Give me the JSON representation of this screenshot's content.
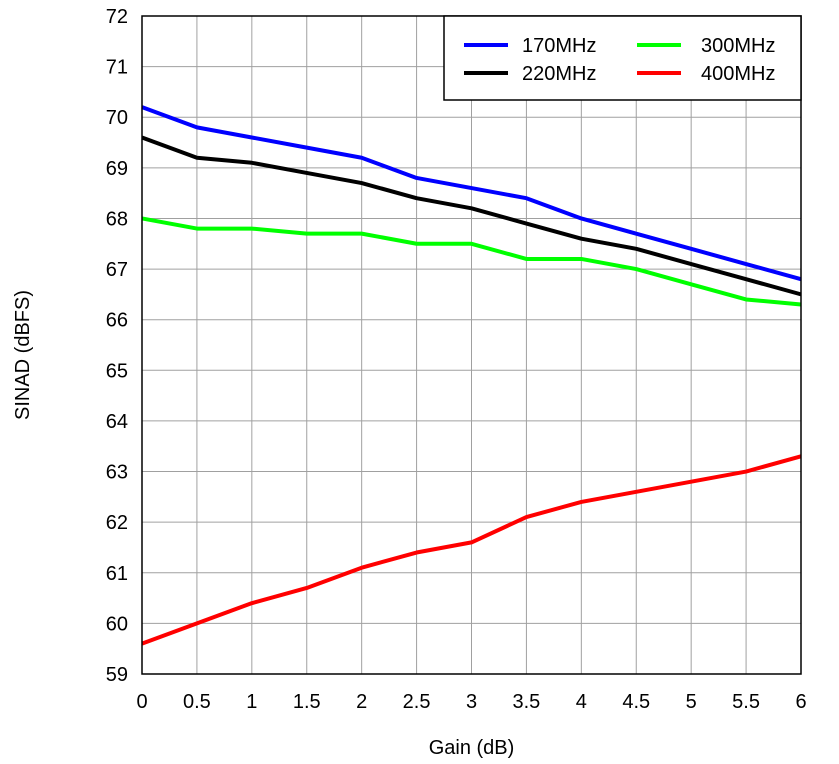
{
  "chart_data": {
    "type": "line",
    "title": "",
    "xlabel": "Gain (dB)",
    "ylabel": "SINAD (dBFS)",
    "xlim": [
      0,
      6
    ],
    "ylim": [
      59,
      72
    ],
    "x_ticks": [
      "0",
      "0.5",
      "1",
      "1.5",
      "2",
      "2.5",
      "3",
      "3.5",
      "4",
      "4.5",
      "5",
      "5.5",
      "6"
    ],
    "y_ticks": [
      "59",
      "60",
      "61",
      "62",
      "63",
      "64",
      "65",
      "66",
      "67",
      "68",
      "69",
      "70",
      "71",
      "72"
    ],
    "grid": true,
    "legend_position": "top-right",
    "x": [
      0,
      0.5,
      1,
      1.5,
      2,
      2.5,
      3,
      3.5,
      4,
      4.5,
      5,
      5.5,
      6
    ],
    "series": [
      {
        "name": "170MHz",
        "color": "#0000ff",
        "values": [
          70.2,
          69.8,
          69.6,
          69.4,
          69.2,
          68.8,
          68.6,
          68.4,
          68.0,
          67.7,
          67.4,
          67.1,
          66.8
        ]
      },
      {
        "name": "220MHz",
        "color": "#000000",
        "values": [
          69.6,
          69.2,
          69.1,
          68.9,
          68.7,
          68.4,
          68.2,
          67.9,
          67.6,
          67.4,
          67.1,
          66.8,
          66.5
        ]
      },
      {
        "name": "300MHz",
        "color": "#00ff00",
        "values": [
          68.0,
          67.8,
          67.8,
          67.7,
          67.7,
          67.5,
          67.5,
          67.2,
          67.2,
          67.0,
          66.7,
          66.4,
          66.3
        ]
      },
      {
        "name": "400MHz",
        "color": "#ff0000",
        "values": [
          59.6,
          60.0,
          60.4,
          60.7,
          61.1,
          61.4,
          61.6,
          62.1,
          62.4,
          62.6,
          62.8,
          63.0,
          63.3
        ]
      }
    ]
  }
}
